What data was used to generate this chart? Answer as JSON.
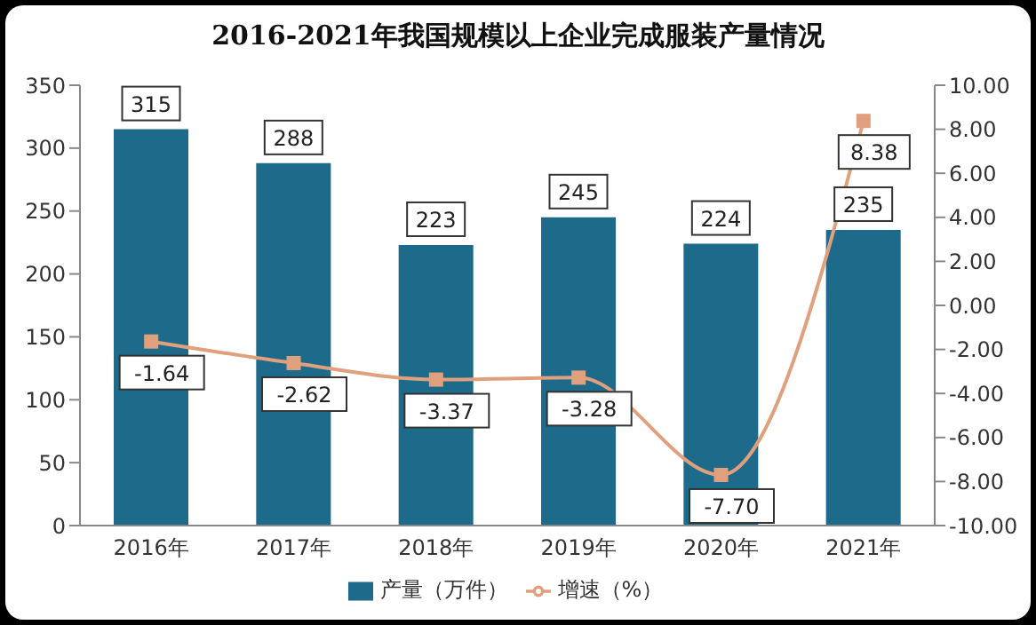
{
  "chart_data": {
    "type": "bar",
    "title": "2016-2021年我国规模以上企业完成服装产量情况",
    "categories": [
      "2016年",
      "2017年",
      "2018年",
      "2019年",
      "2020年",
      "2021年"
    ],
    "series": [
      {
        "name": "产量（万件）",
        "color": "#1d6a8a",
        "values": [
          315,
          288,
          223,
          245,
          224,
          235
        ],
        "value_labels": [
          "315",
          "288",
          "223",
          "245",
          "224",
          "235"
        ]
      },
      {
        "name": "增速（%）",
        "type": "line",
        "axis": "y2",
        "color": "#e0a07e",
        "marker": "square",
        "values": [
          -1.64,
          -2.62,
          -3.37,
          -3.28,
          -7.7,
          8.38
        ],
        "value_labels": [
          "-1.64",
          "-2.62",
          "-3.37",
          "-3.28",
          "-7.70",
          "8.38"
        ]
      }
    ],
    "ylim": [
      0,
      350
    ],
    "yticks": [
      0,
      50,
      100,
      150,
      200,
      250,
      300,
      350
    ],
    "y2lim": [
      -10,
      10
    ],
    "y2ticks": [
      {
        "value": -10,
        "label": "-10.00"
      },
      {
        "value": -8,
        "label": "-8.00"
      },
      {
        "value": -6,
        "label": "-6.00"
      },
      {
        "value": -4,
        "label": "-4.00"
      },
      {
        "value": -2,
        "label": "-2.00"
      },
      {
        "value": 0,
        "label": "0.00"
      },
      {
        "value": 2,
        "label": "2.00"
      },
      {
        "value": 4,
        "label": "4.00"
      },
      {
        "value": 6,
        "label": "6.00"
      },
      {
        "value": 8,
        "label": "8.00"
      },
      {
        "value": 10,
        "label": "10.00"
      }
    ],
    "legend": "bottom"
  }
}
